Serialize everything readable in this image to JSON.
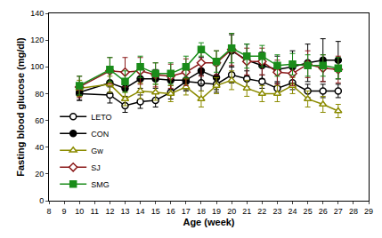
{
  "chart_data": {
    "type": "line",
    "x_label": "Age (week)",
    "y_label": "Fasting blood glucose (mg/dl)",
    "x": [
      10,
      12,
      13,
      14,
      15,
      16,
      17,
      18,
      19,
      20,
      21,
      22,
      23,
      24,
      25,
      26,
      27
    ],
    "xlim": [
      8,
      29
    ],
    "xticks": [
      8,
      9,
      10,
      11,
      12,
      13,
      14,
      15,
      16,
      17,
      18,
      19,
      20,
      21,
      22,
      23,
      24,
      25,
      26,
      27,
      28,
      29
    ],
    "ylim": [
      0,
      140
    ],
    "yticks": [
      0,
      20,
      40,
      60,
      80,
      100,
      120,
      140
    ],
    "grid": false,
    "legend": "lower left",
    "series": [
      {
        "name": "LETO",
        "color": "#000000",
        "marker": "circle-open",
        "values": [
          80,
          79,
          71,
          74,
          75,
          81,
          89,
          88,
          87,
          94,
          91,
          89,
          84,
          88,
          82,
          82,
          82
        ],
        "errors": [
          5,
          6,
          5,
          5,
          5,
          5,
          6,
          6,
          6,
          6,
          6,
          5,
          5,
          5,
          5,
          5,
          5
        ]
      },
      {
        "name": "CON",
        "color": "#000000",
        "marker": "circle",
        "values": [
          81,
          88,
          84,
          91,
          91,
          90,
          90,
          97,
          92,
          112,
          105,
          101,
          98,
          100,
          103,
          105,
          105
        ],
        "errors": [
          6,
          8,
          6,
          7,
          7,
          7,
          8,
          10,
          9,
          12,
          12,
          10,
          10,
          12,
          14,
          16,
          14
        ]
      },
      {
        "name": "Gw",
        "color": "#8b8b00",
        "marker": "triangle-up-open",
        "values": [
          84,
          87,
          76,
          82,
          81,
          80,
          85,
          76,
          86,
          90,
          84,
          80,
          80,
          86,
          76,
          72,
          67
        ],
        "errors": [
          6,
          6,
          5,
          6,
          6,
          6,
          6,
          6,
          6,
          7,
          6,
          6,
          6,
          6,
          6,
          6,
          5
        ]
      },
      {
        "name": "SJ",
        "color": "#8b1a1a",
        "marker": "diamond-open",
        "values": [
          85,
          97,
          96,
          97,
          94,
          93,
          96,
          103,
          103,
          113,
          104,
          104,
          96,
          95,
          102,
          99,
          98
        ],
        "errors": [
          8,
          10,
          11,
          10,
          9,
          9,
          10,
          10,
          9,
          12,
          10,
          10,
          9,
          9,
          10,
          10,
          10
        ]
      },
      {
        "name": "SMG",
        "color": "#1a8c1a",
        "marker": "square",
        "values": [
          86,
          98,
          89,
          100,
          95,
          95,
          100,
          113,
          104,
          114,
          108,
          108,
          101,
          102,
          101,
          101,
          99
        ],
        "errors": [
          7,
          9,
          8,
          8,
          8,
          8,
          8,
          5,
          8,
          11,
          9,
          8,
          8,
          8,
          8,
          8,
          8
        ]
      }
    ]
  }
}
